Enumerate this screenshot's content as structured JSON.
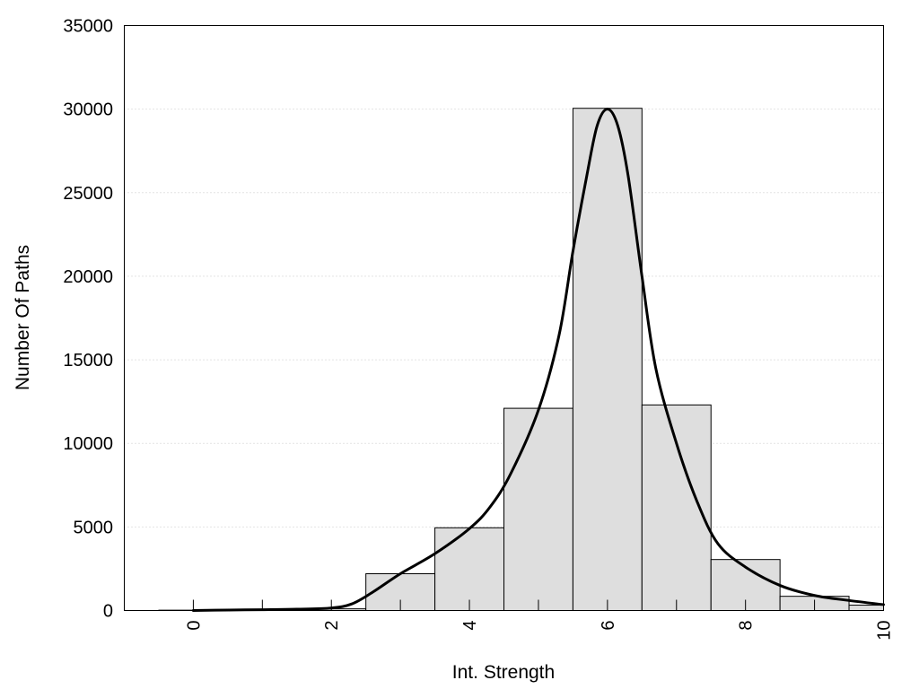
{
  "chart_data": {
    "type": "bar",
    "xlabel": "Int. Strength",
    "ylabel": "Number Of Paths",
    "xlim": [
      -1,
      10
    ],
    "ylim": [
      0,
      35000
    ],
    "x_ticks": [
      "0",
      "2",
      "4",
      "6",
      "8",
      "10"
    ],
    "y_ticks": [
      "0",
      "5000",
      "10000",
      "15000",
      "20000",
      "25000",
      "30000",
      "35000"
    ],
    "grid": "horizontal dotted",
    "bars": {
      "x": [
        0,
        1,
        2,
        3,
        4,
        5,
        6,
        7,
        8,
        9,
        10
      ],
      "values": [
        20,
        40,
        100,
        2200,
        4950,
        12100,
        30050,
        12300,
        3050,
        850,
        320
      ]
    },
    "curve": {
      "type": "line",
      "x": [
        0,
        0.5,
        1,
        1.5,
        2,
        2.3,
        2.6,
        3,
        3.5,
        4,
        4.3,
        4.6,
        5,
        5.3,
        5.5,
        5.7,
        5.85,
        6,
        6.15,
        6.3,
        6.5,
        6.7,
        7,
        7.3,
        7.6,
        8,
        8.5,
        9,
        9.5,
        10
      ],
      "y": [
        0,
        30,
        50,
        80,
        150,
        400,
        1100,
        2200,
        3400,
        4900,
        6200,
        8200,
        12000,
        16500,
        21500,
        26000,
        29000,
        30000,
        29000,
        26000,
        20000,
        14500,
        10000,
        6500,
        4000,
        2600,
        1500,
        900,
        600,
        350
      ]
    }
  }
}
